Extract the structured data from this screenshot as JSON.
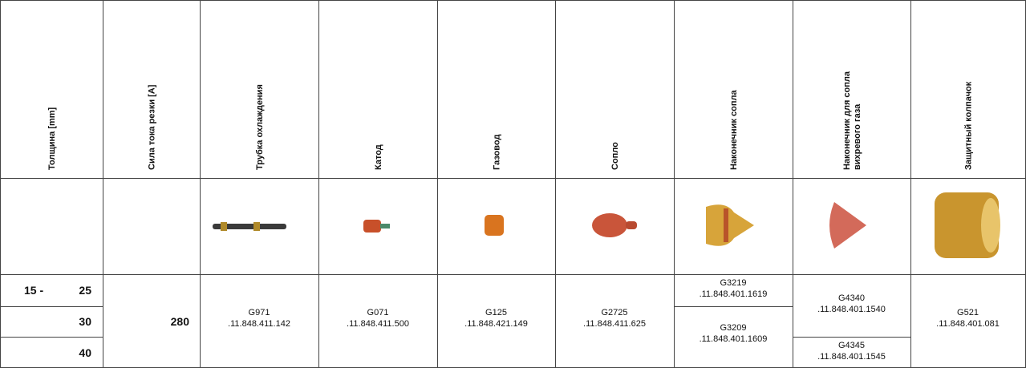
{
  "table": {
    "headers": [
      [
        "Толщина [mm]"
      ],
      [
        "Сила тока резки [A]"
      ],
      [
        "Трубка охлаждения"
      ],
      [
        "Катод"
      ],
      [
        "Газовод"
      ],
      [
        "Сопло"
      ],
      [
        "Наконечник сопла"
      ],
      [
        "Наконечник для сопла",
        "вихревого газа"
      ],
      [
        "Защитный колпачок"
      ]
    ],
    "thickness": [
      [
        "15 -",
        "25"
      ],
      [
        "30"
      ],
      [
        "40"
      ]
    ],
    "current": "280",
    "parts": [
      [
        {
          "code": "G971",
          "number": ".11.848.411.142"
        }
      ],
      [
        {
          "code": "G071",
          "number": ".11.848.411.500"
        }
      ],
      [
        {
          "code": "G125",
          "number": ".11.848.421.149"
        }
      ],
      [
        {
          "code": "G2725",
          "number": ".11.848.411.625"
        }
      ],
      [
        {
          "code": "G3219",
          "number": ".11.848.401.1619"
        },
        {
          "code": "G3209",
          "number": ".11.848.401.1609"
        }
      ],
      [
        {
          "code": "G4340",
          "number": ".11.848.401.1540"
        },
        {
          "code": "G4345",
          "number": ".11.848.401.1545"
        }
      ],
      [
        {
          "code": "G521",
          "number": ".11.848.401.081"
        }
      ]
    ]
  }
}
